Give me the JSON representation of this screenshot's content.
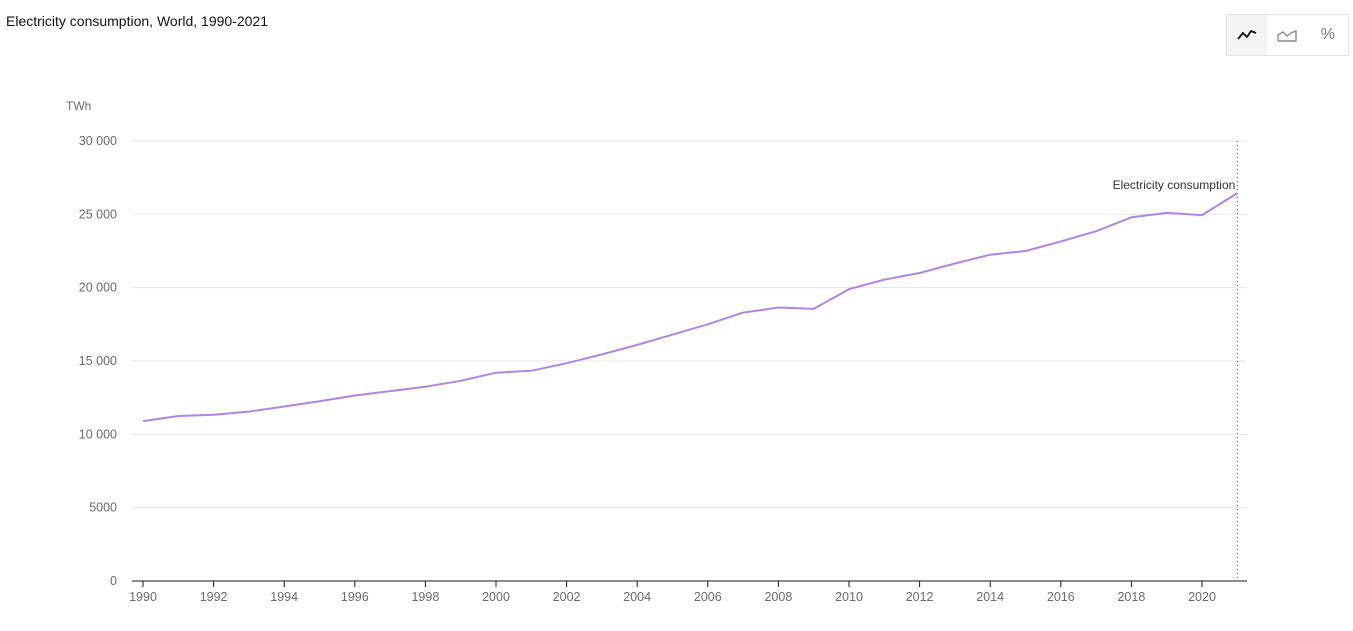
{
  "title": "Electricity consumption, World, 1990-2021",
  "toolbar": {
    "buttons": [
      {
        "icon": "line-chart-icon",
        "active": true
      },
      {
        "icon": "area-chart-icon",
        "active": false
      },
      {
        "icon": "percent-icon",
        "label": "%",
        "active": false
      }
    ]
  },
  "chart_data": {
    "type": "line",
    "title": "Electricity consumption, World, 1990-2021",
    "ylabel": "TWh",
    "xlabel": "",
    "ylim": [
      0,
      30000
    ],
    "xlim": [
      1990,
      2021
    ],
    "y_ticks": [
      {
        "value": 0,
        "label": "0"
      },
      {
        "value": 5000,
        "label": "5000"
      },
      {
        "value": 10000,
        "label": "10 000"
      },
      {
        "value": 15000,
        "label": "15 000"
      },
      {
        "value": 20000,
        "label": "20 000"
      },
      {
        "value": 25000,
        "label": "25 000"
      },
      {
        "value": 30000,
        "label": "30 000"
      }
    ],
    "x_ticks": [
      {
        "value": 1990,
        "label": "1990"
      },
      {
        "value": 1992,
        "label": "1992"
      },
      {
        "value": 1994,
        "label": "1994"
      },
      {
        "value": 1996,
        "label": "1996"
      },
      {
        "value": 1998,
        "label": "1998"
      },
      {
        "value": 2000,
        "label": "2000"
      },
      {
        "value": 2002,
        "label": "2002"
      },
      {
        "value": 2004,
        "label": "2004"
      },
      {
        "value": 2006,
        "label": "2006"
      },
      {
        "value": 2008,
        "label": "2008"
      },
      {
        "value": 2010,
        "label": "2010"
      },
      {
        "value": 2012,
        "label": "2012"
      },
      {
        "value": 2014,
        "label": "2014"
      },
      {
        "value": 2016,
        "label": "2016"
      },
      {
        "value": 2018,
        "label": "2018"
      },
      {
        "value": 2020,
        "label": "2020"
      }
    ],
    "grid": true,
    "series": [
      {
        "name": "Electricity consumption",
        "color": "#b085e6",
        "x": [
          1990,
          1991,
          1992,
          1993,
          1994,
          1995,
          1996,
          1997,
          1998,
          1999,
          2000,
          2001,
          2002,
          2003,
          2004,
          2005,
          2006,
          2007,
          2008,
          2009,
          2010,
          2011,
          2012,
          2013,
          2014,
          2015,
          2016,
          2017,
          2018,
          2019,
          2020,
          2021
        ],
        "values": [
          10900,
          11250,
          11330,
          11550,
          11900,
          12250,
          12650,
          12950,
          13250,
          13650,
          14200,
          14330,
          14850,
          15450,
          16100,
          16800,
          17500,
          18300,
          18650,
          18550,
          19900,
          20550,
          21000,
          21650,
          22250,
          22500,
          23150,
          23850,
          24800,
          25100,
          24950,
          26450
        ]
      }
    ]
  }
}
